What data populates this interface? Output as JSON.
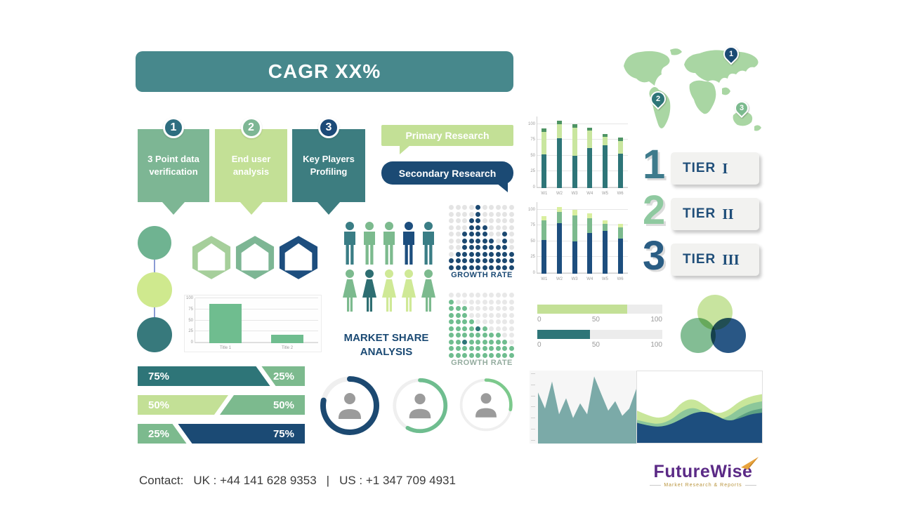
{
  "header": {
    "cagr_label": "CAGR XX%"
  },
  "steps": [
    {
      "number": "1",
      "label": "3 Point data verification",
      "color": "#7db694",
      "badge_color": "#2e6e80"
    },
    {
      "number": "2",
      "label": "End user analysis",
      "color": "#c3e096",
      "badge_color": "#7db694"
    },
    {
      "number": "3",
      "label": "Key Players Profiling",
      "color": "#3d7d80",
      "badge_color": "#1c4a78"
    }
  ],
  "research": {
    "primary_label": "Primary Research",
    "secondary_label": "Secondary Research"
  },
  "map": {
    "land_color": "#a9d6a3",
    "pins": [
      {
        "number": "1",
        "color": "#1b4a74"
      },
      {
        "number": "2",
        "color": "#2e7578"
      },
      {
        "number": "3",
        "color": "#7cba8e"
      }
    ]
  },
  "tiers": [
    {
      "number": "1",
      "number_color": "#3e7b8c",
      "label": "TIER",
      "numeral": "I"
    },
    {
      "number": "2",
      "number_color": "#8fc9a0",
      "label": "TIER",
      "numeral": "II"
    },
    {
      "number": "3",
      "number_color": "#2a5d84",
      "label": "TIER",
      "numeral": "III"
    }
  ],
  "trio": {
    "colors": [
      "#6fb391",
      "#cfe98e",
      "#37797c"
    ]
  },
  "hexagons": {
    "colors": [
      "#a6cf9b",
      "#7db694",
      "#1d4e7e"
    ]
  },
  "people": {
    "row1_colors": [
      "#3a7d85",
      "#7cba8e",
      "#7cba8e",
      "#1d4e7e",
      "#3a7d85"
    ],
    "row2_colors": [
      "#7cba8e",
      "#2e6e72",
      "#cfe996",
      "#cfe996",
      "#7cba8e"
    ]
  },
  "market_share_label": "MARKET SHARE ANALYSIS",
  "venn": {
    "colors": [
      "#c5e39a",
      "#7cba8e",
      "#1d4e7e"
    ]
  },
  "footer": {
    "contact_label": "Contact:",
    "uk_phone": "UK : +44 141 628 9353",
    "separator": "|",
    "us_phone": "US :  +1 347 709 4931"
  },
  "logo": {
    "name": "FutureWise",
    "tagline": "Market Research & Reports"
  },
  "chart_data": [
    {
      "id": "stacked_bar_top",
      "type": "bar",
      "stacked": true,
      "categories": [
        "W1",
        "W2",
        "W3",
        "W4",
        "W5",
        "W6"
      ],
      "series": [
        {
          "name": "bottom-segment",
          "color": "#2e7578",
          "values": [
            53,
            78,
            50,
            63,
            67,
            54
          ]
        },
        {
          "name": "middle-segment",
          "color": "#c9e69f",
          "values": [
            35,
            22,
            45,
            27,
            13,
            20
          ]
        },
        {
          "name": "top-segment",
          "color": "#4e9464",
          "values": [
            5,
            5,
            5,
            5,
            5,
            5
          ]
        }
      ],
      "yticks": [
        0,
        25,
        50,
        75,
        100
      ],
      "ylim": [
        0,
        112
      ],
      "grid": true,
      "legend": false
    },
    {
      "id": "stacked_bar_bottom",
      "type": "bar",
      "stacked": true,
      "categories": [
        "W1",
        "W2",
        "W3",
        "W4",
        "W5",
        "W6"
      ],
      "series": [
        {
          "name": "bottom-segment",
          "color": "#1d4e7e",
          "values": [
            53,
            79,
            51,
            64,
            67,
            55
          ]
        },
        {
          "name": "middle-segment",
          "color": "#7cba8e",
          "values": [
            30,
            18,
            40,
            23,
            11,
            17
          ]
        },
        {
          "name": "top-segment",
          "color": "#d9ef9f",
          "values": [
            7,
            7,
            9,
            8,
            6,
            6
          ]
        }
      ],
      "yticks": [
        0,
        25,
        50,
        75,
        100
      ],
      "ylim": [
        0,
        112
      ],
      "grid": true,
      "legend": false
    },
    {
      "id": "mini_bar",
      "type": "bar",
      "categories": [
        "Title 1",
        "Title 2"
      ],
      "values": [
        88,
        18
      ],
      "color": "#6fbd8f",
      "yticks": [
        0,
        25,
        50,
        75,
        100
      ],
      "ylim": [
        0,
        100
      ],
      "grid": true
    },
    {
      "id": "dot_matrix_top",
      "type": "heatmap",
      "variant": "dot-matrix",
      "cols": 10,
      "rows": 10,
      "column_heights": [
        2,
        3,
        6,
        8,
        10,
        7,
        5,
        4,
        6,
        3
      ],
      "color": "#1c4971",
      "track": "#e4e4e4",
      "title": "GROWTH RATE"
    },
    {
      "id": "dot_matrix_bottom",
      "type": "heatmap",
      "variant": "dot-matrix",
      "cols": 10,
      "rows": 10,
      "column_heights": [
        9,
        8,
        8,
        6,
        5,
        5,
        4,
        4,
        3,
        2
      ],
      "color": "#6fbd8f",
      "track": "#e8e8e8",
      "accent_color": "#2e7578",
      "accent_dots": [
        [
          4,
          5
        ],
        [
          6,
          3
        ],
        [
          7,
          4
        ],
        [
          2,
          7
        ]
      ],
      "title": "GROWTH RATE"
    },
    {
      "id": "progress_bars",
      "type": "bar",
      "variant": "progress",
      "bars": [
        {
          "value": 72,
          "color": "#c3e096"
        },
        {
          "value": 42,
          "color": "#2e7578"
        }
      ],
      "scale": [
        "0",
        "50",
        "100"
      ],
      "max": 100
    },
    {
      "id": "percent_splits",
      "type": "bar",
      "variant": "split",
      "rows": [
        {
          "left_value": 75,
          "left_label": "75%",
          "left_color": "#2e7578",
          "right_value": 25,
          "right_label": "25%",
          "right_color": "#7cba8e"
        },
        {
          "left_value": 50,
          "left_label": "50%",
          "left_color": "#c3e096",
          "right_value": 50,
          "right_label": "50%",
          "right_color": "#7cba8e"
        },
        {
          "left_value": 25,
          "left_label": "25%",
          "left_color": "#7cba8e",
          "right_value": 75,
          "right_label": "75%",
          "right_color": "#1b4a74"
        }
      ]
    },
    {
      "id": "donut_rings",
      "type": "pie",
      "variant": "donut",
      "rings": [
        {
          "percent": 78,
          "color": "#1c4971",
          "stroke": 7
        },
        {
          "percent": 58,
          "color": "#6fbd8f",
          "stroke": 5
        },
        {
          "percent": 28,
          "color": "#7cc98c",
          "stroke": 4
        }
      ]
    },
    {
      "id": "mountain_area",
      "type": "area",
      "color": "#7baaa8",
      "background": "#f6f6f6",
      "values": [
        70,
        48,
        85,
        40,
        62,
        35,
        55,
        40,
        92,
        68,
        45,
        58,
        38,
        48,
        75
      ],
      "ylim": [
        0,
        100
      ]
    },
    {
      "id": "stacked_waves",
      "type": "area",
      "variant": "stacked-waves",
      "layers": [
        {
          "color": "#c8e69a",
          "values": [
            45,
            38,
            34,
            40,
            58,
            62,
            52,
            40,
            45,
            58,
            65,
            68
          ]
        },
        {
          "color": "#8cc79a",
          "values": [
            32,
            28,
            26,
            32,
            45,
            50,
            42,
            32,
            36,
            48,
            55,
            58
          ]
        },
        {
          "color": "#5da183",
          "values": [
            22,
            20,
            17,
            24,
            32,
            38,
            32,
            22,
            27,
            37,
            45,
            48
          ]
        },
        {
          "color": "#1d4e7e",
          "values": [
            28,
            24,
            22,
            26,
            34,
            42,
            44,
            38,
            30,
            34,
            40,
            42
          ]
        }
      ]
    }
  ]
}
